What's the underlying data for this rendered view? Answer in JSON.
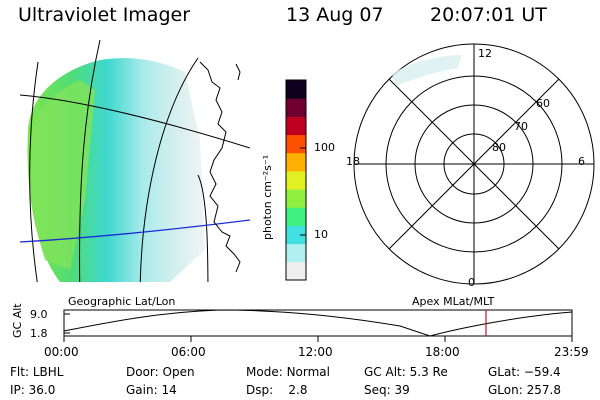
{
  "header": {
    "instrument": "Ultraviolet Imager",
    "date": "13 Aug 07",
    "time": "20:07:01 UT"
  },
  "colorbar": {
    "unit": "photon cm⁻²s⁻¹",
    "tick_100": "100",
    "tick_10": "10",
    "colors": [
      "#eeeeee",
      "#b0f0f0",
      "#40e0e0",
      "#40f080",
      "#90f040",
      "#e0f020",
      "#ffb000",
      "#ff5000",
      "#c00020",
      "#700030",
      "#100020"
    ]
  },
  "geo_panel": {
    "title": "Geographic Lat/Lon"
  },
  "polar_panel": {
    "title": "Apex MLat/MLT",
    "mlt_labels": {
      "top": "12",
      "bottom": "0",
      "left": "18",
      "right": "6"
    },
    "lat_labels": [
      "60",
      "70",
      "80"
    ]
  },
  "altitude_plot": {
    "axis_title": "GC Alt",
    "ytick_top": "9.0",
    "ytick_bottom": "1.8",
    "xticks": [
      "00:00",
      "06:00",
      "12:00",
      "18:00",
      "23:59"
    ],
    "current_marker_time": "20:07"
  },
  "footer": {
    "row1": [
      {
        "label": "Flt:",
        "value": "LBHL"
      },
      {
        "label": "Door:",
        "value": "Open"
      },
      {
        "label": "Mode:",
        "value": "Normal"
      },
      {
        "label": "GC Alt:",
        "value": "5.3 Re"
      },
      {
        "label": "GLat:",
        "value": "−59.4"
      }
    ],
    "row2": [
      {
        "label": "IP:",
        "value": "36.0"
      },
      {
        "label": "Gain:",
        "value": "14"
      },
      {
        "label": "Dsp:",
        "value": "2.8"
      },
      {
        "label": "Seq:",
        "value": "39"
      },
      {
        "label": "GLon:",
        "value": "257.8"
      }
    ]
  }
}
